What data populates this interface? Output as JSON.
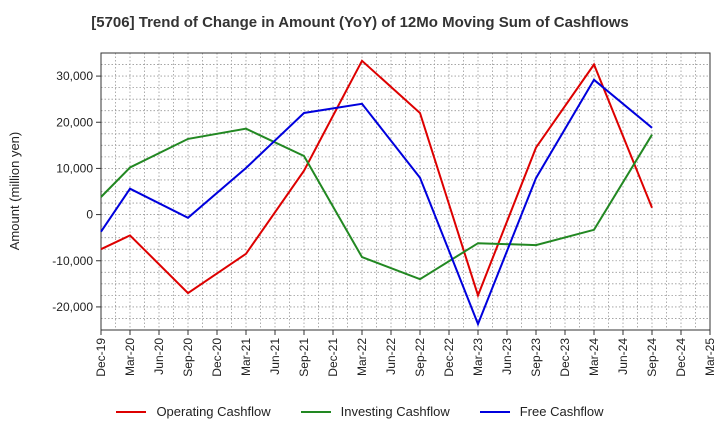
{
  "chart_data": {
    "type": "line",
    "title": "[5706]  Trend of Change in Amount (YoY) of 12Mo Moving Sum of Cashflows",
    "xlabel": "",
    "ylabel": "Amount (million yen)",
    "categories": [
      "Dec-19",
      "Mar-20",
      "Jun-20",
      "Sep-20",
      "Dec-20",
      "Mar-21",
      "Jun-21",
      "Sep-21",
      "Dec-21",
      "Mar-22",
      "Jun-22",
      "Sep-22",
      "Dec-22",
      "Mar-23",
      "Jun-23",
      "Sep-23",
      "Dec-23",
      "Mar-24",
      "Jun-24",
      "Sep-24",
      "Dec-24",
      "Mar-25"
    ],
    "ylim": [
      -25000,
      35000
    ],
    "yticks": [
      -20000,
      -10000,
      0,
      10000,
      20000,
      30000
    ],
    "ytick_labels": [
      "-20,000",
      "-10,000",
      "0",
      "10,000",
      "20,000",
      "30,000"
    ],
    "grid": true,
    "legend_position": "bottom",
    "series": [
      {
        "name": "Operating Cashflow",
        "color": "#dd0000",
        "values": [
          -7500,
          -4500,
          null,
          -17000,
          null,
          -8500,
          null,
          9500,
          null,
          33300,
          null,
          22000,
          null,
          -17500,
          null,
          14500,
          null,
          32500,
          null,
          1500,
          null,
          null
        ]
      },
      {
        "name": "Investing Cashflow",
        "color": "#228822",
        "values": [
          3800,
          10200,
          null,
          16400,
          null,
          18600,
          null,
          12700,
          null,
          -9200,
          null,
          -14000,
          null,
          -6200,
          null,
          -6600,
          null,
          -3300,
          null,
          17300,
          null,
          null
        ]
      },
      {
        "name": "Free Cashflow",
        "color": "#0000dd",
        "values": [
          -3700,
          5600,
          null,
          -700,
          null,
          10100,
          null,
          22000,
          null,
          24000,
          null,
          8000,
          null,
          -23700,
          null,
          7900,
          null,
          29200,
          null,
          18800,
          null,
          null
        ]
      }
    ]
  }
}
